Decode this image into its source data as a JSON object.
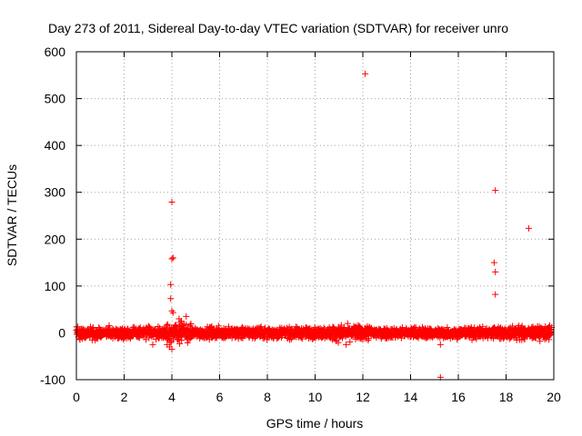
{
  "chart_data": {
    "type": "scatter",
    "title": "Day 273 of 2011, Sidereal Day-to-day VTEC variation (SDTVAR) for receiver unro",
    "xlabel": "GPS time / hours",
    "ylabel": "SDTVAR / TECUs",
    "xlim": [
      0,
      20
    ],
    "ylim": [
      -100,
      600
    ],
    "xticks": [
      0,
      2,
      4,
      6,
      8,
      10,
      12,
      14,
      16,
      18,
      20
    ],
    "yticks": [
      -100,
      0,
      100,
      200,
      300,
      400,
      500,
      600
    ],
    "grid": true,
    "marker": "+",
    "series": [
      {
        "name": "SDTVAR",
        "color": "#ff0000",
        "band": {
          "x_range": [
            0,
            19.9
          ],
          "typical_spread": 8,
          "note": "dense cluster of thousands of points near zero"
        },
        "points": [
          [
            12.1,
            553
          ],
          [
            4.0,
            279
          ],
          [
            17.55,
            304
          ],
          [
            18.95,
            223
          ],
          [
            4.05,
            160
          ],
          [
            4.0,
            158
          ],
          [
            17.5,
            150
          ],
          [
            17.55,
            130
          ],
          [
            3.95,
            103
          ],
          [
            17.55,
            82
          ],
          [
            3.95,
            73
          ],
          [
            4.0,
            47
          ],
          [
            4.05,
            43
          ],
          [
            4.6,
            35
          ],
          [
            4.3,
            30
          ],
          [
            4.4,
            25
          ],
          [
            3.8,
            -25
          ],
          [
            3.9,
            -30
          ],
          [
            4.0,
            -35
          ],
          [
            3.2,
            -25
          ],
          [
            15.25,
            -25
          ],
          [
            11.3,
            -25
          ],
          [
            15.25,
            -95
          ]
        ]
      }
    ]
  }
}
